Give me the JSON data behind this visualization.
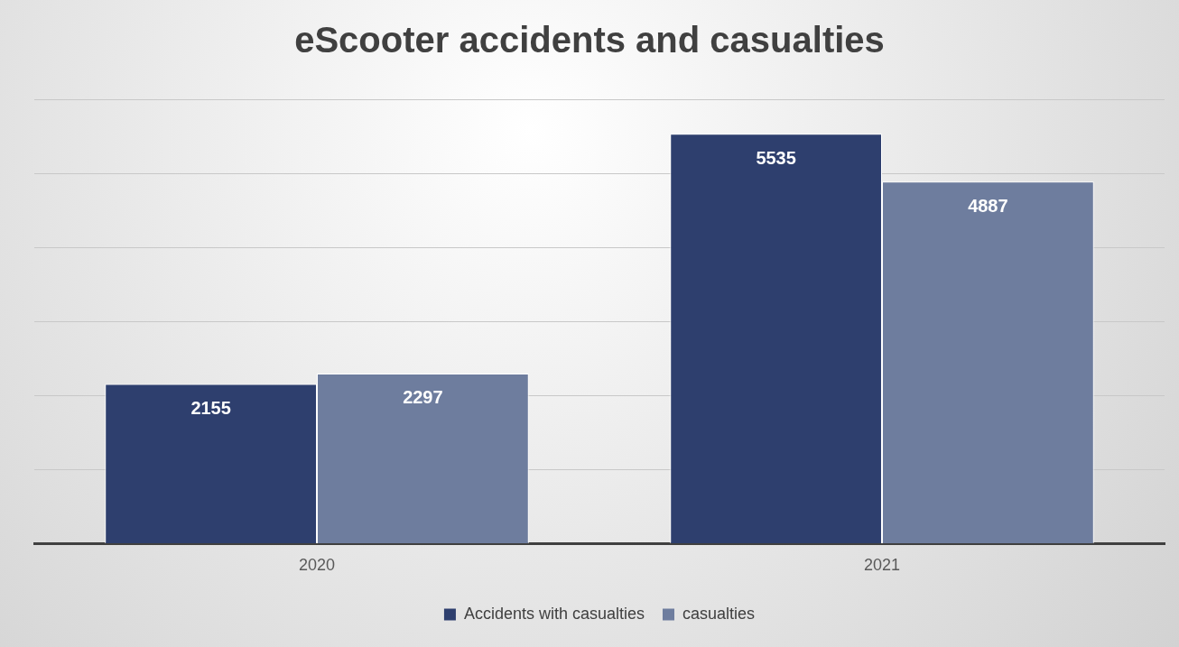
{
  "chart_data": {
    "type": "bar",
    "title": "eScooter accidents and casualties",
    "categories": [
      "2020",
      "2021"
    ],
    "series": [
      {
        "name": "Accidents with casualties",
        "color": "#2e3f6e",
        "values": [
          2155,
          5535
        ]
      },
      {
        "name": "casualties",
        "color": "#6e7d9e",
        "values": [
          2297,
          4887
        ]
      }
    ],
    "ylim": [
      0,
      6000
    ],
    "yticks": [
      {
        "value": 0,
        "label": null
      },
      {
        "value": 1000,
        "label": null
      },
      {
        "value": 2000,
        "label": null
      },
      {
        "value": 3000,
        "label": null
      },
      {
        "value": 4000,
        "label": null
      },
      {
        "value": 5000,
        "label": null
      },
      {
        "value": 6000,
        "label": null
      }
    ],
    "tick_labels": "x",
    "grid": "y",
    "legend": "bottom",
    "data_labels": true
  }
}
